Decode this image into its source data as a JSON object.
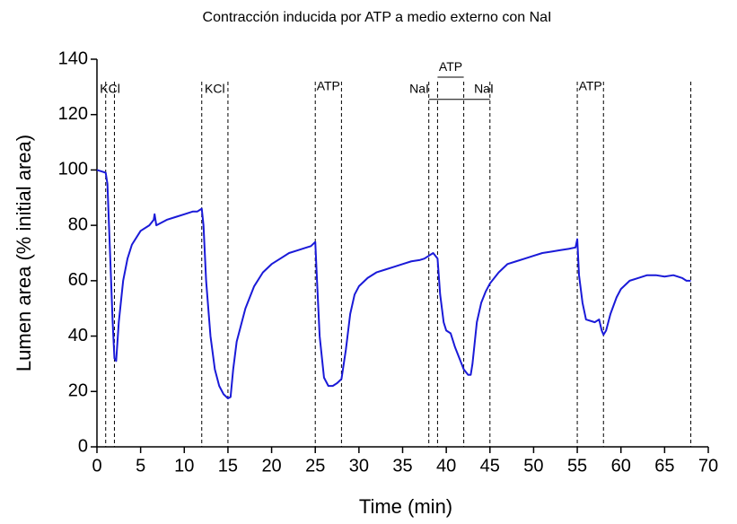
{
  "chart_data": {
    "type": "line",
    "title": "Contracción inducida por ATP a medio externo con NaI",
    "xlabel": "Time (min)",
    "ylabel": "Lumen area (% initial area)",
    "xlim": [
      0,
      70
    ],
    "ylim": [
      0,
      140
    ],
    "xticks": [
      0,
      5,
      10,
      15,
      20,
      25,
      30,
      35,
      40,
      45,
      50,
      55,
      60,
      65,
      70
    ],
    "yticks": [
      0,
      20,
      40,
      60,
      80,
      100,
      120,
      140
    ],
    "grid": false,
    "series": [
      {
        "name": "Lumen area",
        "color": "#1a1ad8",
        "x": [
          0,
          0.5,
          1,
          1.2,
          1.5,
          1.8,
          2,
          2.2,
          2.5,
          3,
          3.5,
          4,
          5,
          6,
          6.5,
          6.6,
          6.8,
          8,
          9,
          10,
          11,
          11.5,
          12,
          12.2,
          12.5,
          13,
          13.5,
          14,
          14.5,
          15,
          15.3,
          15.6,
          16,
          17,
          18,
          19,
          20,
          21,
          22,
          23,
          24,
          24.5,
          25,
          25.2,
          25.5,
          26,
          26.5,
          27,
          27.5,
          28,
          28.5,
          29,
          29.5,
          30,
          31,
          32,
          33,
          34,
          35,
          36,
          37,
          37.5,
          38,
          38.5,
          39,
          39.3,
          39.7,
          40,
          40.5,
          41,
          41.5,
          42,
          42.5,
          42.8,
          43,
          43.5,
          44,
          44.5,
          45,
          46,
          47,
          48,
          49,
          50,
          51,
          52,
          53,
          54,
          54.8,
          55,
          55.2,
          55.6,
          56,
          57,
          57.5,
          57.8,
          58,
          58.3,
          58.8,
          59.5,
          60,
          61,
          62,
          63,
          64,
          65,
          66,
          67,
          67.5,
          68
        ],
        "values": [
          100,
          99.5,
          99,
          95,
          70,
          45,
          32,
          31,
          45,
          60,
          68,
          73,
          78,
          80,
          82,
          84,
          80,
          82,
          83,
          84,
          85,
          85,
          86,
          80,
          60,
          40,
          28,
          22,
          19,
          17.5,
          18,
          28,
          38,
          50,
          58,
          63,
          66,
          68,
          70,
          71,
          72,
          72.5,
          74,
          60,
          40,
          25,
          22,
          22,
          23,
          24.5,
          35,
          48,
          55,
          58,
          61,
          63,
          64,
          65,
          66,
          67,
          67.5,
          68,
          69,
          70,
          68,
          55,
          45,
          42,
          41,
          36,
          32,
          28,
          26,
          26,
          30,
          45,
          52,
          56,
          59,
          63,
          66,
          67,
          68,
          69,
          70,
          70.5,
          71,
          71.5,
          72,
          75,
          62,
          52,
          46,
          45,
          46,
          42,
          40.5,
          42,
          48,
          54,
          57,
          60,
          61,
          62,
          62,
          61.5,
          62,
          61,
          60,
          60
        ]
      }
    ],
    "markers": [
      1,
      2,
      12,
      15,
      25,
      28,
      38,
      39,
      42,
      45,
      55,
      58,
      68
    ],
    "annotations": [
      {
        "text": "KCl",
        "x": 1.5,
        "y": 129
      },
      {
        "text": "KCl",
        "x": 13.5,
        "y": 129
      },
      {
        "text": "ATP",
        "x": 26.5,
        "y": 130
      },
      {
        "text": "NaI",
        "x": 36.9,
        "y": 129
      },
      {
        "text": "ATP",
        "x": 40.5,
        "y": 137
      },
      {
        "text": "NaI",
        "x": 44.3,
        "y": 129
      },
      {
        "text": "ATP",
        "x": 56.5,
        "y": 130
      }
    ],
    "brackets": [
      {
        "x": [
          39,
          42
        ],
        "y": 133.5
      },
      {
        "x": [
          38,
          45
        ],
        "y": 125.5
      }
    ]
  }
}
